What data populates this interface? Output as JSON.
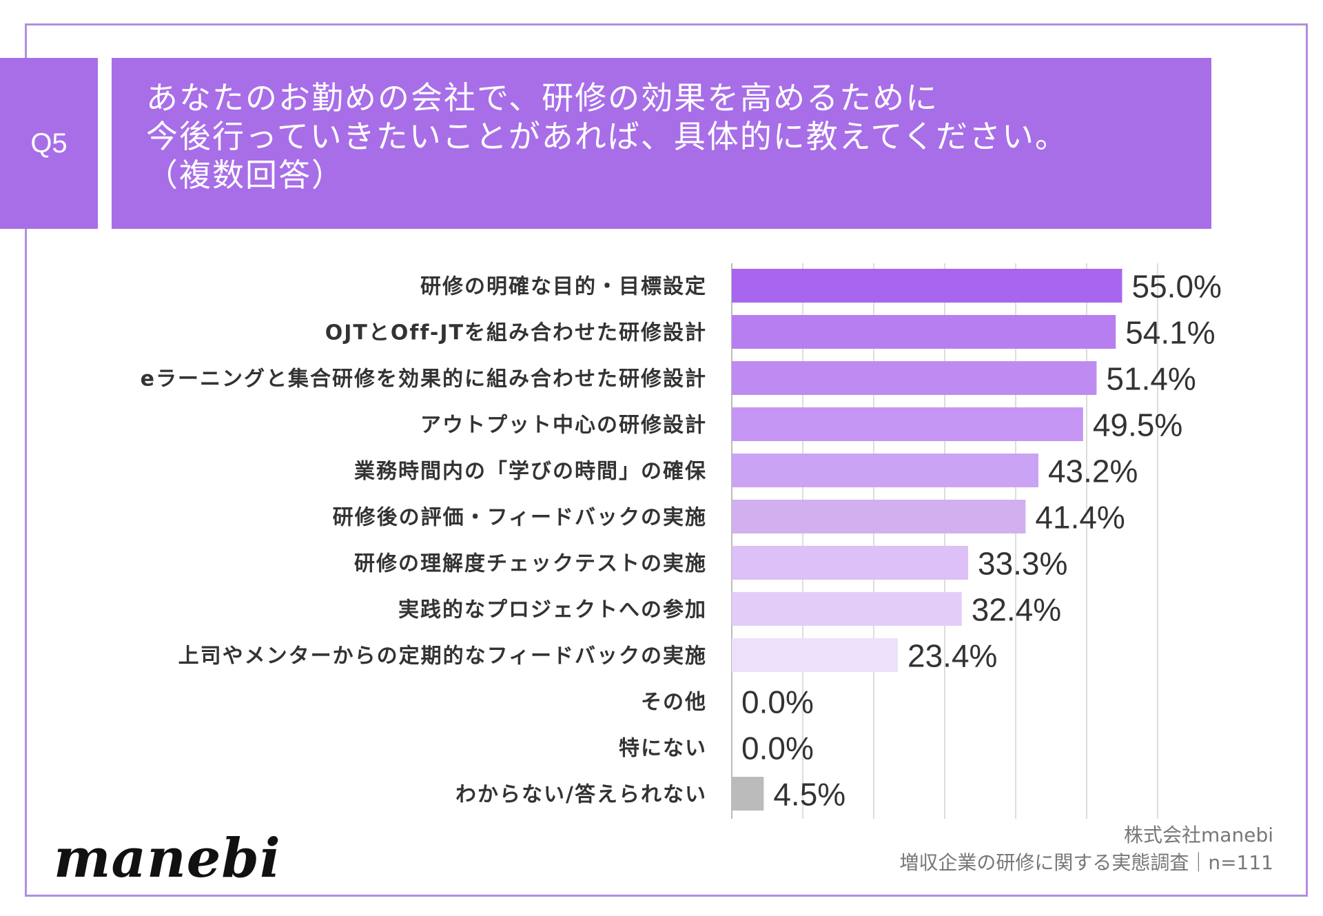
{
  "question": {
    "badge": "Q5",
    "line1": "あなたのお勤めの会社で、研修の効果を高めるために",
    "line2": "今後行っていきたいことがあれば、具体的に教えてください。",
    "line3": "（複数回答）"
  },
  "chart_data": {
    "type": "bar",
    "orientation": "horizontal",
    "categories": [
      "研修の明確な目的・目標設定",
      "OJTとOff-JTを組み合わせた研修設計",
      "eラーニングと集合研修を効果的に組み合わせた研修設計",
      "アウトプット中心の研修設計",
      "業務時間内の「学びの時間」の確保",
      "研修後の評価・フィードバックの実施",
      "研修の理解度チェックテストの実施",
      "実践的なプロジェクトへの参加",
      "上司やメンターからの定期的なフィードバックの実施",
      "その他",
      "特にない",
      "わからない/答えられない"
    ],
    "values": [
      55.0,
      54.1,
      51.4,
      49.5,
      43.2,
      41.4,
      33.3,
      32.4,
      23.4,
      0.0,
      0.0,
      4.5
    ],
    "value_labels": [
      "55.0%",
      "54.1%",
      "51.4%",
      "49.5%",
      "43.2%",
      "41.4%",
      "33.3%",
      "32.4%",
      "23.4%",
      "0.0%",
      "0.0%",
      "4.5%"
    ],
    "colors": [
      "#a866ee",
      "#b77ef0",
      "#be8bf1",
      "#c596f3",
      "#cba3f4",
      "#d2afef",
      "#dcc0f7",
      "#e3cdf8",
      "#ece0fa",
      "#e6d8f8",
      "#e6d8f8",
      "#bbbbbb"
    ],
    "xlim": [
      0,
      60
    ],
    "grid": true,
    "unit": "%"
  },
  "footer": {
    "company": "株式会社manebi",
    "survey": "増収企業の研修に関する実態調査｜n=111"
  },
  "logo_text": "manebi"
}
